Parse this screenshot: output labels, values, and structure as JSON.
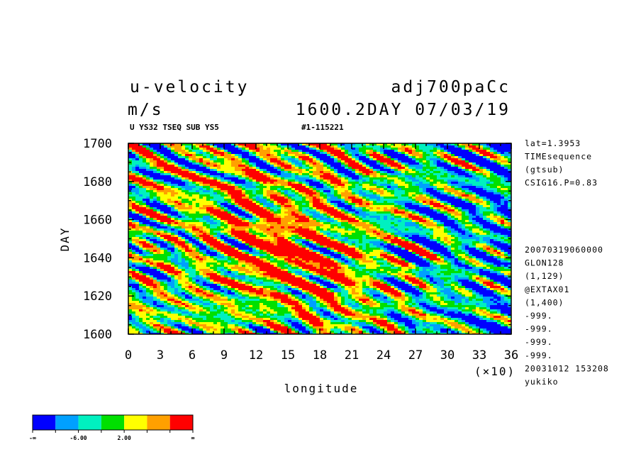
{
  "header": {
    "variable": "u-velocity",
    "units": "m/s",
    "experiment": "adj700paCc",
    "datetime": "1600.2DAY 07/03/19",
    "subtitle_left": "U YS32 TSEQ SUB YS5",
    "subtitle_right": "#1-115221"
  },
  "side_info": {
    "top": [
      "lat=1.3953",
      "TIMEsequence",
      "(gtsub)",
      "CSIG16.P=0.83"
    ],
    "bottom": [
      "20070319060000",
      "GLON128",
      "(1,129)",
      "@EXTAX01",
      "(1,400)",
      "-999.",
      "-999.",
      "-999.",
      "-999.",
      "20031012 153208",
      "yukiko"
    ]
  },
  "legend": {
    "labels": [
      "-∞",
      "-6.00",
      "2.00",
      "∞"
    ],
    "colors": [
      "#0000ff",
      "#00a0ff",
      "#00f0c0",
      "#00e000",
      "#ffff00",
      "#ffa000",
      "#ff0000"
    ]
  },
  "chart_data": {
    "type": "heatmap",
    "title": "u-velocity",
    "xlabel": "longitude",
    "ylabel": "DAY",
    "x_multiplier_label": "(×10)",
    "xlim": [
      0,
      36
    ],
    "ylim": [
      1600,
      1700
    ],
    "x_ticks": [
      "0",
      "3",
      "6",
      "9",
      "12",
      "15",
      "18",
      "21",
      "24",
      "27",
      "30",
      "33",
      "36"
    ],
    "y_ticks": [
      "1600",
      "1620",
      "1640",
      "1660",
      "1680",
      "1700"
    ],
    "color_levels": [
      "-∞",
      "-6.00",
      "2.00",
      "∞"
    ],
    "colors": [
      "#0000ff",
      "#00a0ff",
      "#00f0c0",
      "#00e000",
      "#ffff00",
      "#ffa000",
      "#ff0000"
    ],
    "pattern": "noisy westward-tilted bands; strongest positive (red) near longitude 90-210 between days 1610-1675; negative (blue) mainly east of longitude 240"
  }
}
